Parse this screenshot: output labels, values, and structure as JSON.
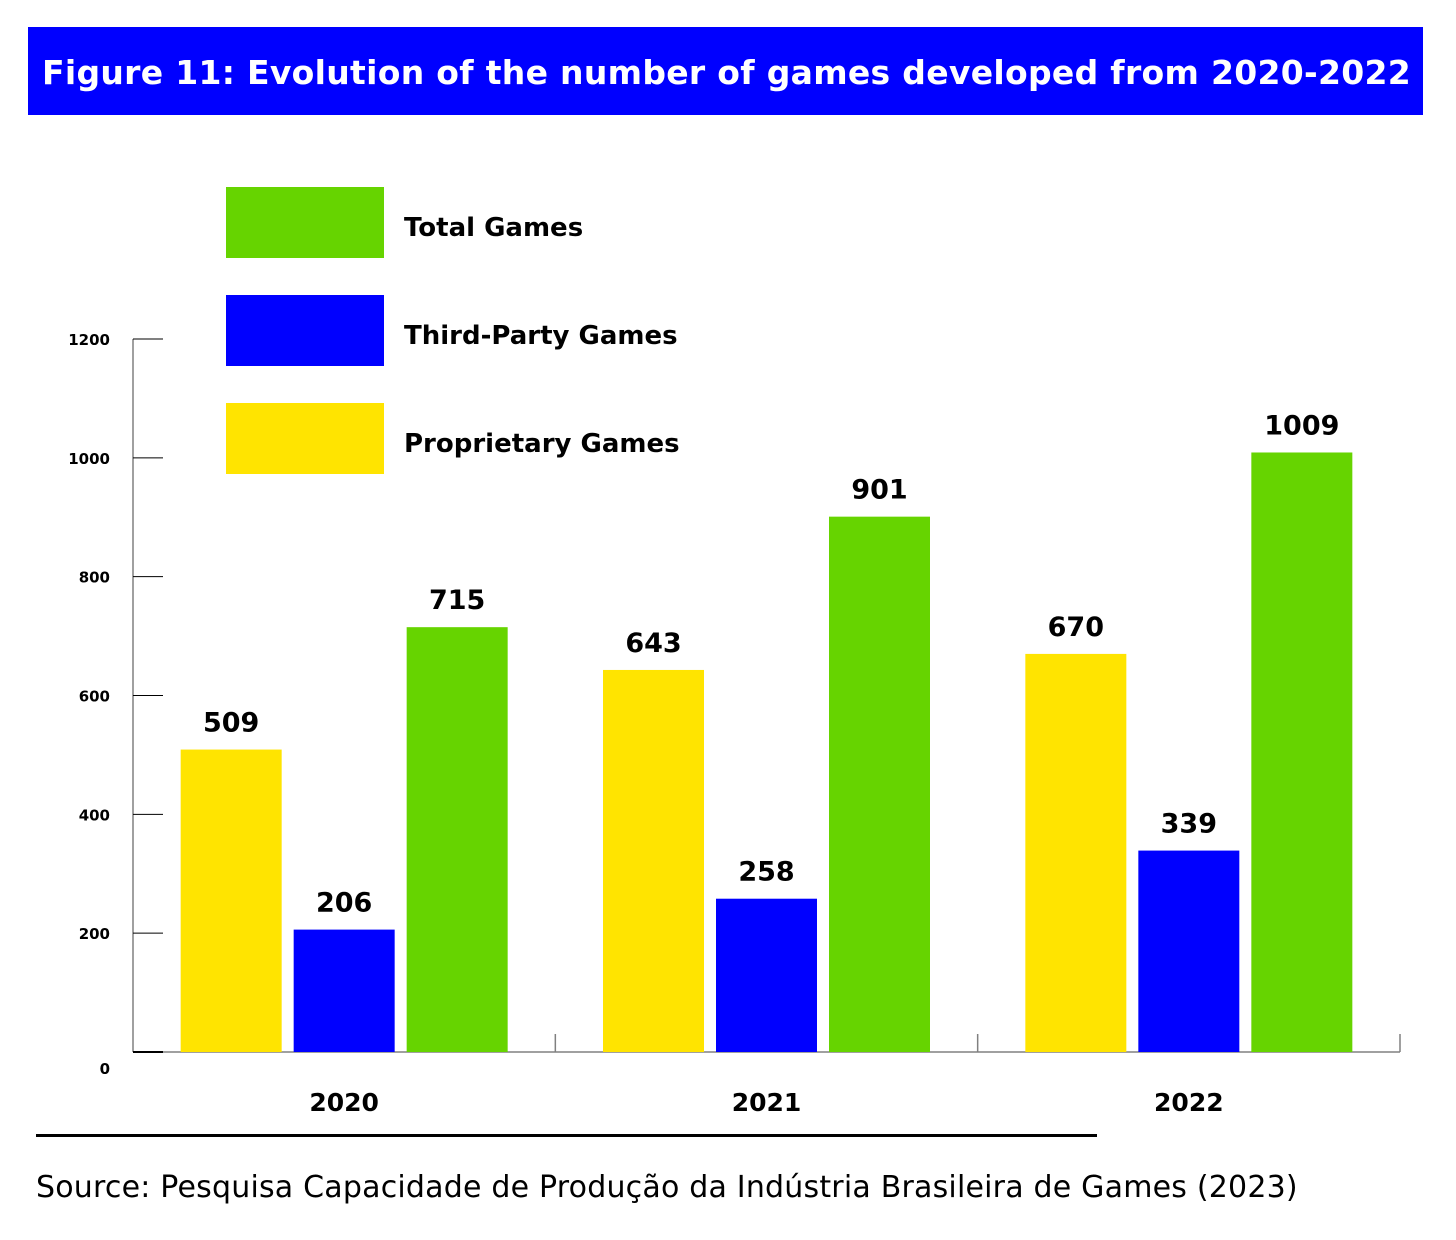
{
  "title": "Figure 11: Evolution of the number of games developed from 2020-2022",
  "source": "Source: Pesquisa Capacidade de Produção da Indústria Brasileira de Games (2023)",
  "colors": {
    "header_bg": "#0000ff",
    "header_text": "#ffffff",
    "proprietary": "#ffe400",
    "third_party": "#0000ff",
    "total": "#66d400"
  },
  "chart_data": {
    "type": "bar",
    "title": "Figure 11: Evolution of the number of games developed from 2020-2022",
    "xlabel": "",
    "ylabel": "",
    "categories": [
      "2020",
      "2021",
      "2022"
    ],
    "series": [
      {
        "name": "Proprietary Games",
        "color": "#ffe400",
        "values": [
          509,
          643,
          670
        ]
      },
      {
        "name": "Third-Party Games",
        "color": "#0000ff",
        "values": [
          206,
          258,
          339
        ]
      },
      {
        "name": "Total Games",
        "color": "#66d400",
        "values": [
          715,
          901,
          1009
        ]
      }
    ],
    "yticks": [
      0,
      200,
      400,
      600,
      800,
      1000,
      1200
    ],
    "ylim": [
      0,
      1200
    ],
    "grid": false,
    "legend": {
      "placement": "top-left",
      "entries": [
        {
          "label": "Total Games",
          "color": "#66d400"
        },
        {
          "label": "Third-Party Games",
          "color": "#0000ff"
        },
        {
          "label": "Proprietary Games",
          "color": "#ffe400"
        }
      ]
    },
    "data_labels": true
  }
}
